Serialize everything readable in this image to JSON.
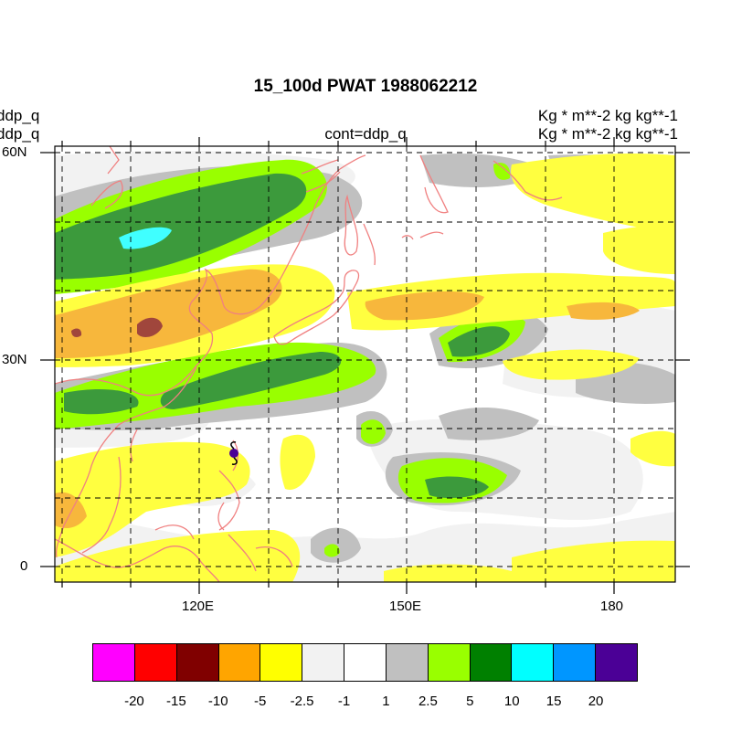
{
  "title": "15_100d PWAT  1988062212",
  "left_labels": [
    "ddp_q",
    "ddp_q"
  ],
  "right_labels": [
    "Kg  * m**-2 kg kg**-1",
    "Kg  * m**-2 kg kg**-1"
  ],
  "center_label": "cont=ddp_q",
  "map": {
    "lon_range": [
      100,
      190
    ],
    "lat_range": [
      -2,
      61
    ],
    "y_ticks": [
      "60N",
      "30N",
      "0"
    ],
    "x_ticks": [
      "120E",
      "150E",
      "180"
    ],
    "gridlines": "dashed"
  },
  "typhoon_symbol": "typhoon-icon",
  "colorbar": {
    "colors": [
      "#ff00ff",
      "#ff0000",
      "#800000",
      "#ffa500",
      "#ffff00",
      "#f2f2f2",
      "#ffffff",
      "#c0c0c0",
      "#99ff00",
      "#008000",
      "#00ffff",
      "#0096ff",
      "#4b0096"
    ],
    "labels": [
      "-20",
      "-15",
      "-10",
      "-5",
      "-2.5",
      "-1",
      "1",
      "2.5",
      "5",
      "10",
      "15",
      "20"
    ]
  }
}
